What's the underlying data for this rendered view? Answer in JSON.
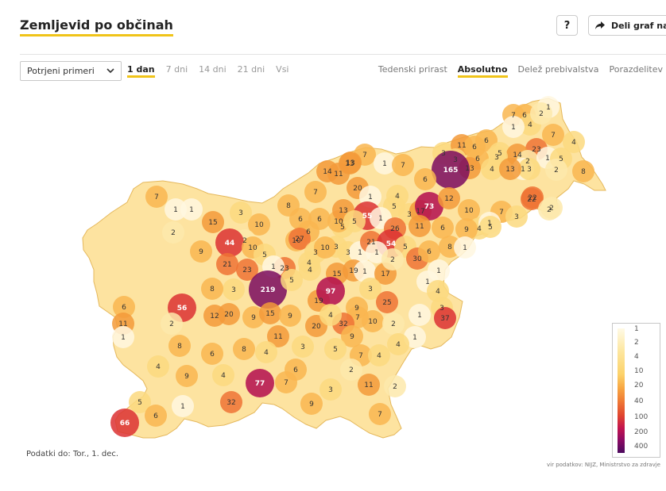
{
  "header": {
    "title": "Zemljevid po občinah",
    "help_label": "?",
    "share_label": "Deli graf na"
  },
  "controls": {
    "select_value": "Potrjeni primeri",
    "time_tabs": [
      {
        "label": "1 dan",
        "active": true
      },
      {
        "label": "7 dni",
        "active": false
      },
      {
        "label": "14 dni",
        "active": false
      },
      {
        "label": "21 dni",
        "active": false
      },
      {
        "label": "Vsi",
        "active": false
      }
    ],
    "mode_tabs": [
      {
        "label": "Tedenski prirast",
        "active": false
      },
      {
        "label": "Absolutno",
        "active": true
      },
      {
        "label": "Delež prebivalstva",
        "active": false
      },
      {
        "label": "Porazdelitev",
        "active": false
      }
    ]
  },
  "legend": {
    "labels": [
      "1",
      "2",
      "4",
      "10",
      "20",
      "40",
      "100",
      "200",
      "400"
    ]
  },
  "colors": {
    "empty": "#ffffff",
    "scale": [
      "#fff7e0",
      "#fde9ab",
      "#fcd97f",
      "#f9b650",
      "#f39a3a",
      "#ee7335",
      "#dc3133",
      "#b30d4f",
      "#7a0a5f"
    ],
    "accent": "#f0c419"
  },
  "map_values": [
    1,
    7,
    6,
    4,
    2,
    1,
    7,
    4,
    7,
    6,
    5,
    13,
    23,
    14,
    3,
    11,
    6,
    2,
    3,
    6,
    3,
    1,
    8,
    13,
    4,
    1,
    5,
    2,
    165,
    3,
    13,
    1,
    6,
    7,
    14,
    11,
    13,
    20,
    22,
    7,
    1,
    5,
    7,
    1,
    1,
    4,
    3,
    55,
    1,
    17,
    73,
    12,
    10,
    4,
    2,
    7,
    1,
    6,
    6,
    5,
    3,
    10,
    10,
    13,
    26,
    5,
    11,
    10,
    6,
    9,
    5,
    6,
    2,
    3,
    8,
    22,
    2,
    2,
    15,
    44,
    10,
    27,
    3,
    3,
    1,
    21,
    54,
    5,
    30,
    6,
    8,
    1,
    9,
    21,
    5,
    3,
    10,
    1,
    23,
    4,
    15,
    19,
    1,
    17,
    2,
    23,
    1,
    219,
    5,
    4,
    1,
    1,
    4,
    3,
    3,
    19,
    9,
    25,
    7,
    3,
    6,
    56,
    12,
    20,
    8,
    9,
    15,
    9,
    10,
    2,
    37,
    1,
    97,
    1,
    4,
    11,
    1,
    2,
    20,
    32,
    4,
    11,
    4,
    9,
    8,
    6,
    8,
    3,
    5,
    7,
    4,
    4,
    9,
    4,
    77,
    6,
    2,
    11,
    2,
    9,
    3,
    7,
    7,
    1,
    32,
    5,
    6,
    66,
    13
  ],
  "footer": {
    "data_date": "Podatki do: Tor., 1. dec.",
    "source": "vir podatkov: NIJZ, Ministrstvo za zdravje"
  }
}
